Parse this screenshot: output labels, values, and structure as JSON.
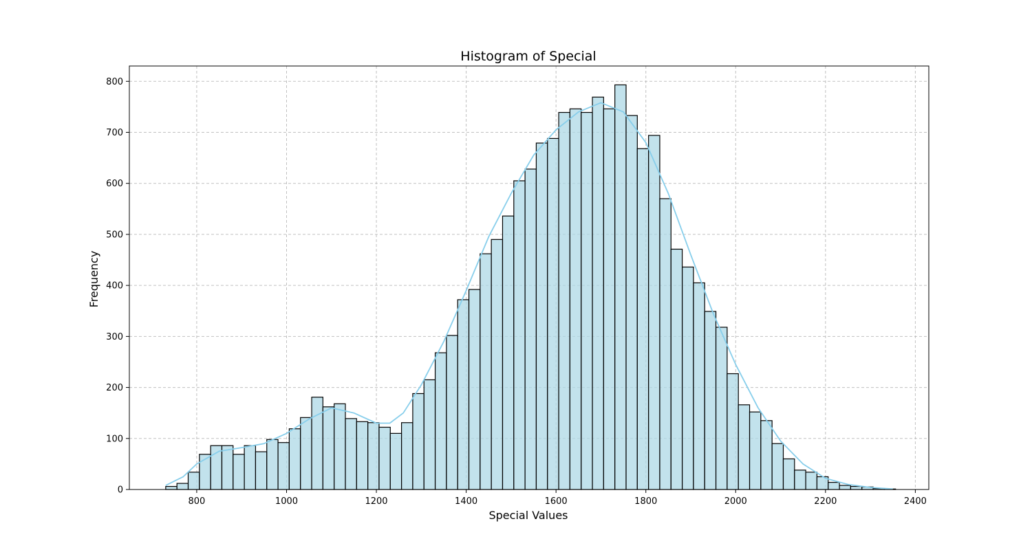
{
  "chart_data": {
    "type": "bar",
    "title": "Histogram of Special",
    "xlabel": "Special Values",
    "ylabel": "Frequency",
    "xlim": [
      650,
      2430
    ],
    "ylim": [
      0,
      830
    ],
    "xticks": [
      800,
      1000,
      1200,
      1400,
      1600,
      1800,
      2000,
      2200,
      2400
    ],
    "yticks": [
      0,
      100,
      200,
      300,
      400,
      500,
      600,
      700,
      800
    ],
    "grid": true,
    "bar_color": "#add8e6",
    "edge_color": "#000000",
    "kde_color": "#87ceeb",
    "bin_start": 731,
    "bin_width": 25.0,
    "values": [
      6,
      12,
      34,
      69,
      86,
      86,
      69,
      86,
      74,
      98,
      92,
      119,
      141,
      181,
      162,
      168,
      139,
      133,
      131,
      122,
      110,
      131,
      188,
      215,
      268,
      302,
      372,
      392,
      462,
      490,
      536,
      605,
      628,
      679,
      688,
      739,
      746,
      739,
      769,
      746,
      793,
      733,
      668,
      694,
      570,
      471,
      436,
      405,
      349,
      318,
      227,
      166,
      152,
      135,
      90,
      60,
      38,
      34,
      25,
      14,
      8,
      6,
      5,
      2,
      1
    ],
    "kde": {
      "x": [
        731,
        770,
        800,
        850,
        900,
        950,
        1000,
        1050,
        1100,
        1150,
        1200,
        1230,
        1260,
        1300,
        1350,
        1400,
        1450,
        1500,
        1550,
        1600,
        1650,
        1700,
        1750,
        1800,
        1850,
        1900,
        1950,
        2000,
        2050,
        2100,
        2150,
        2200,
        2250,
        2300,
        2350
      ],
      "y": [
        8,
        25,
        50,
        75,
        82,
        90,
        110,
        138,
        160,
        150,
        130,
        130,
        150,
        205,
        290,
        390,
        495,
        580,
        655,
        705,
        740,
        758,
        740,
        680,
        580,
        460,
        345,
        245,
        160,
        95,
        50,
        22,
        10,
        4,
        1
      ]
    }
  }
}
